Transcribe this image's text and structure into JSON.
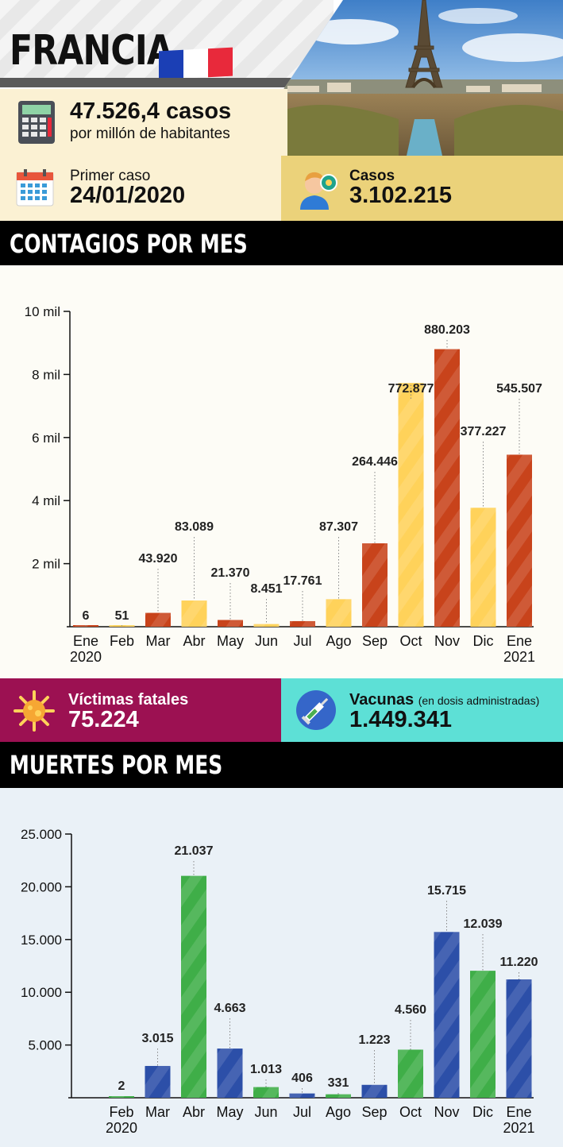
{
  "country": "FRANCIA",
  "stats": {
    "per_million_value": "47.526,4 casos",
    "per_million_label": "por millón de habitantes",
    "first_case_label": "Primer caso",
    "first_case_date": "24/01/2020",
    "cases_label": "Casos",
    "cases_value": "3.102.215"
  },
  "colors": {
    "red": "#c8431b",
    "yellow": "#ffd25a",
    "green": "#3fae48",
    "blue": "#2c4fa8",
    "victims_band": "#9c1152",
    "vaccines_band": "#5de0d6",
    "cases_band": "#ebd27a"
  },
  "section1_title": "CONTAGIOS POR MES",
  "section2_title": "MUERTES POR MES",
  "victims": {
    "label": "Víctimas fatales",
    "value": "75.224"
  },
  "vaccines": {
    "label": "Vacunas",
    "note": "(en dosis administradas)",
    "value": "1.449.341"
  },
  "chart_data": [
    {
      "type": "bar",
      "title": "CONTAGIOS POR MES",
      "categories": [
        "Ene\n2020",
        "Feb",
        "Mar",
        "Abr",
        "May",
        "Jun",
        "Jul",
        "Ago",
        "Sep",
        "Oct",
        "Nov",
        "Dic",
        "Ene\n2021"
      ],
      "values": [
        6,
        51,
        43920,
        83089,
        21370,
        8451,
        17761,
        87307,
        264446,
        772877,
        880203,
        377227,
        545507
      ],
      "labels": [
        "6",
        "51",
        "43.920",
        "83.089",
        "21.370",
        "8.451",
        "17.761",
        "87.307",
        "264.446",
        "772.877",
        "880.203",
        "377.227",
        "545.507"
      ],
      "bar_colors": [
        "red",
        "yellow",
        "red",
        "yellow",
        "red",
        "yellow",
        "red",
        "yellow",
        "red",
        "yellow",
        "red",
        "yellow",
        "red"
      ],
      "yticks": [
        2,
        4,
        6,
        8,
        10
      ],
      "ytick_labels": [
        "2 mil",
        "4 mil",
        "6 mil",
        "8 mil",
        "10 mil"
      ],
      "ylim": [
        0,
        10
      ]
    },
    {
      "type": "bar",
      "title": "MUERTES POR MES",
      "categories": [
        "Feb\n2020",
        "Mar",
        "Abr",
        "May",
        "Jun",
        "Jul",
        "Ago",
        "Sep",
        "Oct",
        "Nov",
        "Dic",
        "Ene\n2021"
      ],
      "values": [
        2,
        3015,
        21037,
        4663,
        1013,
        406,
        331,
        1223,
        4560,
        15715,
        12039,
        11220
      ],
      "labels": [
        "2",
        "3.015",
        "21.037",
        "4.663",
        "1.013",
        "406",
        "331",
        "1.223",
        "4.560",
        "15.715",
        "12.039",
        "11.220"
      ],
      "bar_colors": [
        "green",
        "blue",
        "green",
        "blue",
        "green",
        "blue",
        "green",
        "blue",
        "green",
        "blue",
        "green",
        "blue"
      ],
      "yticks": [
        5000,
        10000,
        15000,
        20000,
        25000
      ],
      "ytick_labels": [
        "5.000",
        "10.000",
        "15.000",
        "20.000",
        "25.000"
      ],
      "ylim": [
        0,
        25000
      ]
    }
  ]
}
